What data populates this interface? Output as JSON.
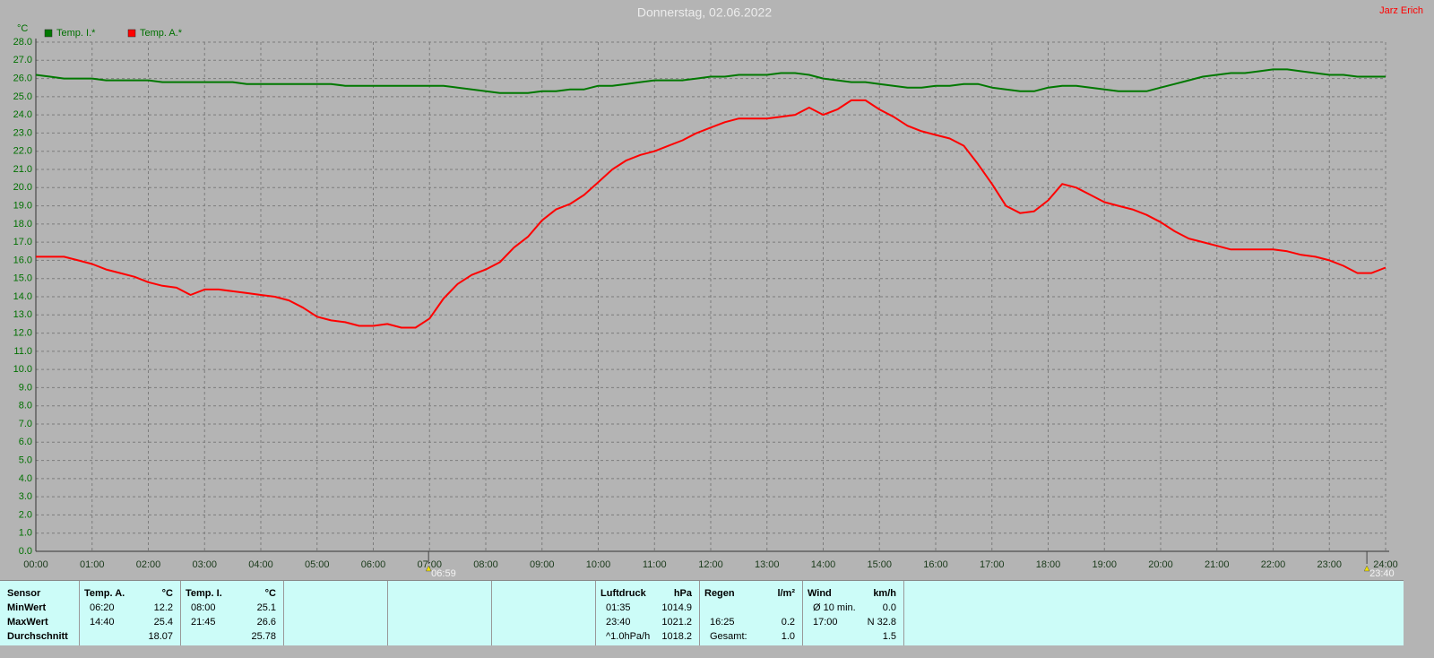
{
  "chart_data": {
    "type": "line",
    "title": "Donnerstag, 02.06.2022",
    "author": "Jarz Erich",
    "y_label": "°C",
    "legend": "top-left",
    "grid": true,
    "xlim": [
      0,
      24
    ],
    "ylim": [
      0,
      28
    ],
    "xticks": [
      {
        "value": 0,
        "label": "00:00"
      },
      {
        "value": 1,
        "label": "01:00"
      },
      {
        "value": 2,
        "label": "02:00"
      },
      {
        "value": 3,
        "label": "03:00"
      },
      {
        "value": 4,
        "label": "04:00"
      },
      {
        "value": 5,
        "label": "05:00"
      },
      {
        "value": 6,
        "label": "06:00"
      },
      {
        "value": 7,
        "label": "07:00"
      },
      {
        "value": 8,
        "label": "08:00"
      },
      {
        "value": 9,
        "label": "09:00"
      },
      {
        "value": 10,
        "label": "10:00"
      },
      {
        "value": 11,
        "label": "11:00"
      },
      {
        "value": 12,
        "label": "12:00"
      },
      {
        "value": 13,
        "label": "13:00"
      },
      {
        "value": 14,
        "label": "14:00"
      },
      {
        "value": 15,
        "label": "15:00"
      },
      {
        "value": 16,
        "label": "16:00"
      },
      {
        "value": 17,
        "label": "17:00"
      },
      {
        "value": 18,
        "label": "18:00"
      },
      {
        "value": 19,
        "label": "19:00"
      },
      {
        "value": 20,
        "label": "20:00"
      },
      {
        "value": 21,
        "label": "21:00"
      },
      {
        "value": 22,
        "label": "22:00"
      },
      {
        "value": 23,
        "label": "23:00"
      },
      {
        "value": 24,
        "label": "24:00"
      }
    ],
    "yticks": [
      {
        "value": 0,
        "label": "0.0"
      },
      {
        "value": 1,
        "label": "1.0"
      },
      {
        "value": 2,
        "label": "2.0"
      },
      {
        "value": 3,
        "label": "3.0"
      },
      {
        "value": 4,
        "label": "4.0"
      },
      {
        "value": 5,
        "label": "5.0"
      },
      {
        "value": 6,
        "label": "6.0"
      },
      {
        "value": 7,
        "label": "7.0"
      },
      {
        "value": 8,
        "label": "8.0"
      },
      {
        "value": 9,
        "label": "9.0"
      },
      {
        "value": 10,
        "label": "10.0"
      },
      {
        "value": 11,
        "label": "11.0"
      },
      {
        "value": 12,
        "label": "12.0"
      },
      {
        "value": 13,
        "label": "13.0"
      },
      {
        "value": 14,
        "label": "14.0"
      },
      {
        "value": 15,
        "label": "15.0"
      },
      {
        "value": 16,
        "label": "16.0"
      },
      {
        "value": 17,
        "label": "17.0"
      },
      {
        "value": 18,
        "label": "18.0"
      },
      {
        "value": 19,
        "label": "19.0"
      },
      {
        "value": 20,
        "label": "20.0"
      },
      {
        "value": 21,
        "label": "21.0"
      },
      {
        "value": 22,
        "label": "22.0"
      },
      {
        "value": 23,
        "label": "23.0"
      },
      {
        "value": 24,
        "label": "24.0"
      },
      {
        "value": 25,
        "label": "25.0"
      },
      {
        "value": 26,
        "label": "26.0"
      },
      {
        "value": 27,
        "label": "27.0"
      },
      {
        "value": 28,
        "label": "28.0"
      }
    ],
    "annotations": [
      {
        "x": 6.983,
        "label": "06:59"
      },
      {
        "x": 23.667,
        "label": "23:40"
      }
    ],
    "x": [
      0,
      0.25,
      0.5,
      0.75,
      1,
      1.25,
      1.5,
      1.75,
      2,
      2.25,
      2.5,
      2.75,
      3,
      3.25,
      3.5,
      3.75,
      4,
      4.25,
      4.5,
      4.75,
      5,
      5.25,
      5.5,
      5.75,
      6,
      6.25,
      6.5,
      6.75,
      7,
      7.25,
      7.5,
      7.75,
      8,
      8.25,
      8.5,
      8.75,
      9,
      9.25,
      9.5,
      9.75,
      10,
      10.25,
      10.5,
      10.75,
      11,
      11.25,
      11.5,
      11.75,
      12,
      12.25,
      12.5,
      12.75,
      13,
      13.25,
      13.5,
      13.75,
      14,
      14.25,
      14.5,
      14.75,
      15,
      15.25,
      15.5,
      15.75,
      16,
      16.25,
      16.5,
      16.75,
      17,
      17.25,
      17.5,
      17.75,
      18,
      18.25,
      18.5,
      18.75,
      19,
      19.25,
      19.5,
      19.75,
      20,
      20.25,
      20.5,
      20.75,
      21,
      21.25,
      21.5,
      21.75,
      22,
      22.25,
      22.5,
      22.75,
      23,
      23.25,
      23.5,
      23.75,
      24
    ],
    "series": [
      {
        "name": "Temp. I.*",
        "color": "#007800",
        "values": [
          26.2,
          26.1,
          26.0,
          26.0,
          26.0,
          25.9,
          25.9,
          25.9,
          25.9,
          25.8,
          25.8,
          25.8,
          25.8,
          25.8,
          25.8,
          25.7,
          25.7,
          25.7,
          25.7,
          25.7,
          25.7,
          25.7,
          25.6,
          25.6,
          25.6,
          25.6,
          25.6,
          25.6,
          25.6,
          25.6,
          25.5,
          25.4,
          25.3,
          25.2,
          25.2,
          25.2,
          25.3,
          25.3,
          25.4,
          25.4,
          25.6,
          25.6,
          25.7,
          25.8,
          25.9,
          25.9,
          25.9,
          26.0,
          26.1,
          26.1,
          26.2,
          26.2,
          26.2,
          26.3,
          26.3,
          26.2,
          26.0,
          25.9,
          25.8,
          25.8,
          25.7,
          25.6,
          25.5,
          25.5,
          25.6,
          25.6,
          25.7,
          25.7,
          25.5,
          25.4,
          25.3,
          25.3,
          25.5,
          25.6,
          25.6,
          25.5,
          25.4,
          25.3,
          25.3,
          25.3,
          25.5,
          25.7,
          25.9,
          26.1,
          26.2,
          26.3,
          26.3,
          26.4,
          26.5,
          26.5,
          26.4,
          26.3,
          26.2,
          26.2,
          26.1,
          26.1,
          26.1
        ]
      },
      {
        "name": "Temp. A.*",
        "color": "#ff0000",
        "values": [
          16.2,
          16.2,
          16.2,
          16.0,
          15.8,
          15.5,
          15.3,
          15.1,
          14.8,
          14.6,
          14.5,
          14.1,
          14.4,
          14.4,
          14.3,
          14.2,
          14.1,
          14.0,
          13.8,
          13.4,
          12.9,
          12.7,
          12.6,
          12.4,
          12.4,
          12.5,
          12.3,
          12.3,
          12.8,
          13.9,
          14.7,
          15.2,
          15.5,
          15.9,
          16.7,
          17.3,
          18.2,
          18.8,
          19.1,
          19.6,
          20.3,
          21.0,
          21.5,
          21.8,
          22.0,
          22.3,
          22.6,
          23.0,
          23.3,
          23.6,
          23.8,
          23.8,
          23.8,
          23.9,
          24.0,
          24.4,
          24.0,
          24.3,
          24.8,
          24.8,
          24.3,
          23.9,
          23.4,
          23.1,
          22.9,
          22.7,
          22.3,
          21.3,
          20.2,
          19.0,
          18.6,
          18.7,
          19.3,
          20.2,
          20.0,
          19.6,
          19.2,
          19.0,
          18.8,
          18.5,
          18.1,
          17.6,
          17.2,
          17.0,
          16.8,
          16.6,
          16.6,
          16.6,
          16.6,
          16.5,
          16.3,
          16.2,
          16.0,
          15.7,
          15.3,
          15.3,
          15.6
        ]
      }
    ]
  },
  "table": {
    "columns": [
      {
        "rows": [
          [
            "Sensor"
          ],
          [
            "MinWert"
          ],
          [
            "MaxWert"
          ],
          [
            "Durchschnitt"
          ]
        ]
      },
      {
        "rows": [
          [
            "Temp. A.",
            "°C"
          ],
          [
            "06:20",
            "12.2"
          ],
          [
            "14:40",
            "25.4"
          ],
          [
            null,
            "18.07"
          ]
        ]
      },
      {
        "rows": [
          [
            "Temp. I.",
            "°C"
          ],
          [
            "08:00",
            "25.1"
          ],
          [
            "21:45",
            "26.6"
          ],
          [
            null,
            "25.78"
          ]
        ]
      },
      {
        "rows": [
          [
            "Luftdruck",
            "hPa"
          ],
          [
            "01:35",
            "1014.9"
          ],
          [
            "23:40",
            "1021.2"
          ],
          [
            "^1.0hPa/h",
            "1018.2"
          ]
        ]
      },
      {
        "rows": [
          [
            "Regen",
            "l/m²"
          ],
          [
            null,
            null
          ],
          [
            "16:25",
            "0.2"
          ],
          [
            "Gesamt:",
            "1.0"
          ]
        ]
      },
      {
        "rows": [
          [
            "Wind",
            "km/h"
          ],
          [
            "Ø 10 min.",
            "0.0"
          ],
          [
            "17:00",
            "N 32.8"
          ],
          [
            null,
            "1.5"
          ]
        ]
      }
    ]
  }
}
